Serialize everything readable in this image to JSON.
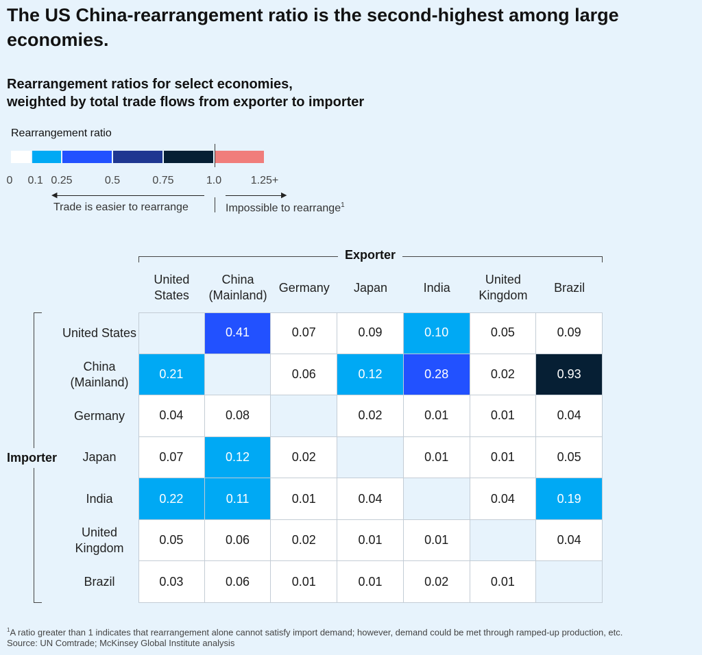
{
  "title": "The US China-rearrangement ratio is the second-highest among large economies.",
  "subtitle_lines": [
    "Rearrangement ratios for select economies,",
    "weighted by total trade flows from exporter to importer"
  ],
  "legend": {
    "title": "Rearrangement ratio",
    "bins": [
      {
        "from": 0,
        "to": 0.1,
        "color": "#ffffff"
      },
      {
        "from": 0.1,
        "to": 0.25,
        "color": "#00a9f4"
      },
      {
        "from": 0.25,
        "to": 0.5,
        "color": "#2251ff"
      },
      {
        "from": 0.5,
        "to": 0.75,
        "color": "#1f3791"
      },
      {
        "from": 0.75,
        "to": 1.0,
        "color": "#061f34"
      },
      {
        "from": 1.0,
        "to": 1.25,
        "color": "#f07d7b"
      }
    ],
    "ticks": [
      "0",
      "0.1",
      "0.25",
      "0.5",
      "0.75",
      "1.0",
      "1.25+"
    ],
    "left_note": "Trade is easier to rearrange",
    "right_note": "Impossible to rearrange",
    "right_note_marker": "1"
  },
  "chart_data": {
    "type": "heatmap",
    "x_axis_title": "Exporter",
    "y_axis_title": "Importer",
    "columns": [
      "United States",
      "China (Mainland)",
      "Germany",
      "Japan",
      "India",
      "United Kingdom",
      "Brazil"
    ],
    "rows": [
      "United States",
      "China (Mainland)",
      "Germany",
      "Japan",
      "India",
      "United Kingdom",
      "Brazil"
    ],
    "values": [
      [
        null,
        0.41,
        0.07,
        0.09,
        0.1,
        0.05,
        0.09
      ],
      [
        0.21,
        null,
        0.06,
        0.12,
        0.28,
        0.02,
        0.93
      ],
      [
        0.04,
        0.08,
        null,
        0.02,
        0.01,
        0.01,
        0.04
      ],
      [
        0.07,
        0.12,
        0.02,
        null,
        0.01,
        0.01,
        0.05
      ],
      [
        0.22,
        0.11,
        0.01,
        0.04,
        null,
        0.04,
        0.19
      ],
      [
        0.05,
        0.06,
        0.02,
        0.01,
        0.01,
        null,
        0.04
      ],
      [
        0.03,
        0.06,
        0.01,
        0.01,
        0.02,
        0.01,
        null
      ]
    ],
    "value_labels": [
      [
        "",
        "0.41",
        "0.07",
        "0.09",
        "0.10",
        "0.05",
        "0.09"
      ],
      [
        "0.21",
        "",
        "0.06",
        "0.12",
        "0.28",
        "0.02",
        "0.93"
      ],
      [
        "0.04",
        "0.08",
        "",
        "0.02",
        "0.01",
        "0.01",
        "0.04"
      ],
      [
        "0.07",
        "0.12",
        "0.02",
        "",
        "0.01",
        "0.01",
        "0.05"
      ],
      [
        "0.22",
        "0.11",
        "0.01",
        "0.04",
        "",
        "0.04",
        "0.19"
      ],
      [
        "0.05",
        "0.06",
        "0.02",
        "0.01",
        "0.01",
        "",
        "0.04"
      ],
      [
        "0.03",
        "0.06",
        "0.01",
        "0.01",
        "0.02",
        "0.01",
        ""
      ]
    ],
    "empty_cell_color": "#e7f3fc"
  },
  "footnote": {
    "marker": "1",
    "text": "A ratio greater than 1 indicates that rearrangement alone cannot satisfy import demand; however, demand could be met through ramped-up production, etc.",
    "source": "Source: UN Comtrade; McKinsey Global Institute analysis"
  }
}
